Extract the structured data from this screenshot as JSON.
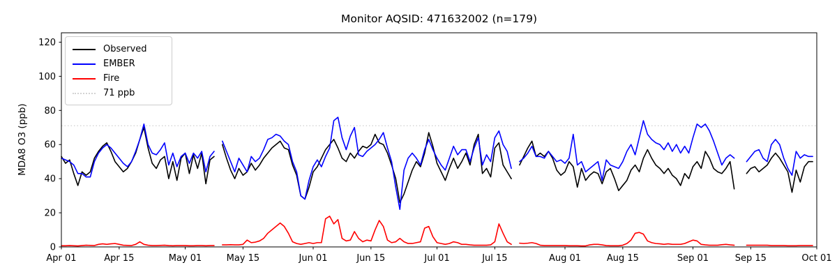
{
  "title": "Monitor AQSID: 471632002 (n=179)",
  "axes": {
    "ylabel": "MDA8 O3 (ppb)",
    "yticks": [
      0,
      20,
      40,
      60,
      80,
      100,
      120
    ],
    "ylim": [
      0,
      125.5
    ],
    "xtick_labels": [
      "Apr 01",
      "Apr 15",
      "May 01",
      "May 15",
      "Jun 01",
      "Jun 15",
      "Jul 01",
      "Jul 15",
      "Aug 01",
      "Aug 15",
      "Sep 01",
      "Sep 15",
      "Oct 01"
    ],
    "xtick_days": [
      0,
      14,
      30,
      44,
      61,
      75,
      91,
      105,
      122,
      136,
      153,
      167,
      183
    ],
    "x_total_days": 183,
    "grid": "off",
    "spine_color": "#000000"
  },
  "legend": {
    "position": "upper-left",
    "items": [
      {
        "label": "Observed",
        "color": "#000000",
        "style": "solid"
      },
      {
        "label": "EMBER",
        "color": "#0000ff",
        "style": "solid"
      },
      {
        "label": "Fire",
        "color": "#ff0000",
        "style": "solid"
      },
      {
        "label": "71 ppb",
        "color": "#d3d3d3",
        "style": "dotted"
      }
    ]
  },
  "threshold": {
    "value": 71,
    "label": "71 ppb",
    "color": "#d3d3d3",
    "style": "dotted"
  },
  "chart_data": {
    "type": "line",
    "title": "Monitor AQSID: 471632002 (n=179)",
    "xlabel": "",
    "ylabel": "MDA8 O3 (ppb)",
    "x_start": "Apr 01",
    "x_end": "Sep 30",
    "x_unit": "daily values, index 0 = Apr 01",
    "n_observations": 179,
    "missing_days": [
      "May 09",
      "Jul 20",
      "Sep 12",
      "Sep 13"
    ],
    "series": [
      {
        "name": "Observed",
        "color": "#000000",
        "values": [
          53,
          49,
          51,
          43,
          36,
          44,
          42,
          44,
          52,
          56,
          59,
          61,
          56,
          50,
          47,
          44,
          46,
          50,
          55,
          63,
          70,
          58,
          49,
          46,
          51,
          53,
          40,
          50,
          39,
          52,
          55,
          43,
          54,
          46,
          55,
          37,
          51,
          53,
          null,
          60,
          52,
          45,
          40,
          46,
          42,
          44,
          49,
          45,
          48,
          52,
          55,
          58,
          60,
          62,
          58,
          57,
          48,
          42,
          30,
          28,
          35,
          44,
          47,
          52,
          57,
          60,
          63,
          58,
          52,
          50,
          55,
          52,
          56,
          59,
          58,
          60,
          66,
          61,
          60,
          55,
          48,
          40,
          26,
          31,
          38,
          45,
          50,
          47,
          55,
          67,
          59,
          49,
          44,
          39,
          46,
          52,
          46,
          50,
          55,
          48,
          60,
          66,
          43,
          46,
          41,
          58,
          61,
          48,
          44,
          40,
          null,
          48,
          53,
          58,
          62,
          53,
          55,
          53,
          56,
          52,
          45,
          42,
          44,
          50,
          47,
          35,
          46,
          39,
          42,
          44,
          43,
          37,
          44,
          46,
          40,
          33,
          36,
          39,
          45,
          48,
          44,
          52,
          57,
          52,
          48,
          46,
          43,
          46,
          42,
          40,
          36,
          43,
          40,
          47,
          50,
          46,
          56,
          52,
          46,
          44,
          43,
          46,
          50,
          34,
          null,
          null,
          43,
          46,
          47,
          44,
          46,
          48,
          52,
          55,
          52,
          48,
          44,
          32,
          45,
          38,
          47,
          50,
          50
        ]
      },
      {
        "name": "EMBER",
        "color": "#0000ff",
        "values": [
          52,
          51,
          50,
          48,
          43,
          43,
          41,
          41,
          50,
          55,
          58,
          60,
          58,
          55,
          52,
          49,
          47,
          50,
          56,
          63,
          72,
          60,
          55,
          54,
          57,
          61,
          48,
          55,
          47,
          53,
          55,
          49,
          55,
          52,
          56,
          44,
          53,
          56,
          null,
          62,
          56,
          50,
          44,
          52,
          48,
          44,
          53,
          50,
          52,
          57,
          63,
          64,
          66,
          65,
          62,
          60,
          50,
          44,
          30,
          28,
          39,
          47,
          51,
          47,
          53,
          58,
          74,
          76,
          64,
          57,
          65,
          70,
          54,
          53,
          56,
          58,
          60,
          63,
          67,
          58,
          50,
          35,
          22,
          45,
          52,
          55,
          52,
          48,
          57,
          63,
          57,
          52,
          48,
          45,
          52,
          59,
          54,
          57,
          57,
          50,
          58,
          64,
          48,
          54,
          50,
          64,
          68,
          60,
          56,
          46,
          null,
          50,
          52,
          55,
          59,
          53,
          53,
          52,
          56,
          53,
          50,
          51,
          49,
          52,
          66,
          48,
          50,
          44,
          46,
          48,
          50,
          39,
          51,
          48,
          47,
          46,
          50,
          56,
          60,
          54,
          64,
          74,
          66,
          63,
          61,
          60,
          57,
          61,
          56,
          60,
          55,
          59,
          55,
          64,
          72,
          70,
          72,
          68,
          62,
          55,
          48,
          52,
          54,
          52,
          null,
          null,
          50,
          53,
          56,
          57,
          52,
          50,
          60,
          63,
          60,
          52,
          46,
          42,
          56,
          52,
          54,
          53,
          53
        ]
      },
      {
        "name": "Fire",
        "color": "#ff0000",
        "values": [
          0.7,
          0.7,
          0.8,
          0.7,
          0.6,
          0.8,
          1,
          0.9,
          0.8,
          1.5,
          1.8,
          1.5,
          1.8,
          2,
          1.5,
          1,
          0.9,
          0.8,
          1.5,
          3,
          1.5,
          1,
          0.8,
          0.8,
          0.9,
          1,
          0.8,
          0.7,
          0.8,
          0.8,
          0.8,
          0.7,
          0.7,
          0.8,
          0.8,
          0.7,
          0.8,
          0.8,
          null,
          1.2,
          1.2,
          1.3,
          1.2,
          1.2,
          1.5,
          4,
          2.5,
          2.8,
          3.5,
          5,
          8,
          10,
          12,
          14,
          12,
          8,
          3,
          2,
          1.5,
          2,
          2.5,
          2,
          2.5,
          2.5,
          16.5,
          18,
          13.5,
          16,
          5,
          3.5,
          4,
          9,
          5,
          3,
          4,
          3.5,
          10,
          15.5,
          12,
          4,
          2.5,
          3,
          5,
          3,
          2,
          2,
          2.5,
          3,
          11,
          12,
          6,
          2.5,
          2,
          1.5,
          2,
          3,
          2.5,
          1.5,
          1.5,
          1.2,
          1,
          1,
          1,
          1,
          1.2,
          3,
          13.5,
          8,
          3,
          1.5,
          null,
          2.2,
          2,
          2.2,
          2.5,
          2,
          1,
          0.8,
          0.8,
          0.8,
          0.8,
          0.8,
          0.8,
          0.7,
          0.7,
          0.7,
          0.6,
          0.6,
          1.2,
          1.5,
          1.5,
          1.2,
          0.8,
          0.7,
          0.7,
          0.7,
          1,
          2,
          4,
          8,
          8.5,
          7.5,
          3.5,
          2.5,
          2,
          1.8,
          1.5,
          1.8,
          1.5,
          1.5,
          1.5,
          2,
          3,
          4,
          3.5,
          1.5,
          1.2,
          1,
          1,
          1,
          1.3,
          1.5,
          1.2,
          1,
          null,
          null,
          1,
          1,
          1,
          1,
          1,
          1,
          0.8,
          0.8,
          0.8,
          0.8,
          0.7,
          0.7,
          0.7,
          0.8,
          0.8,
          0.8,
          0.8
        ]
      }
    ]
  }
}
